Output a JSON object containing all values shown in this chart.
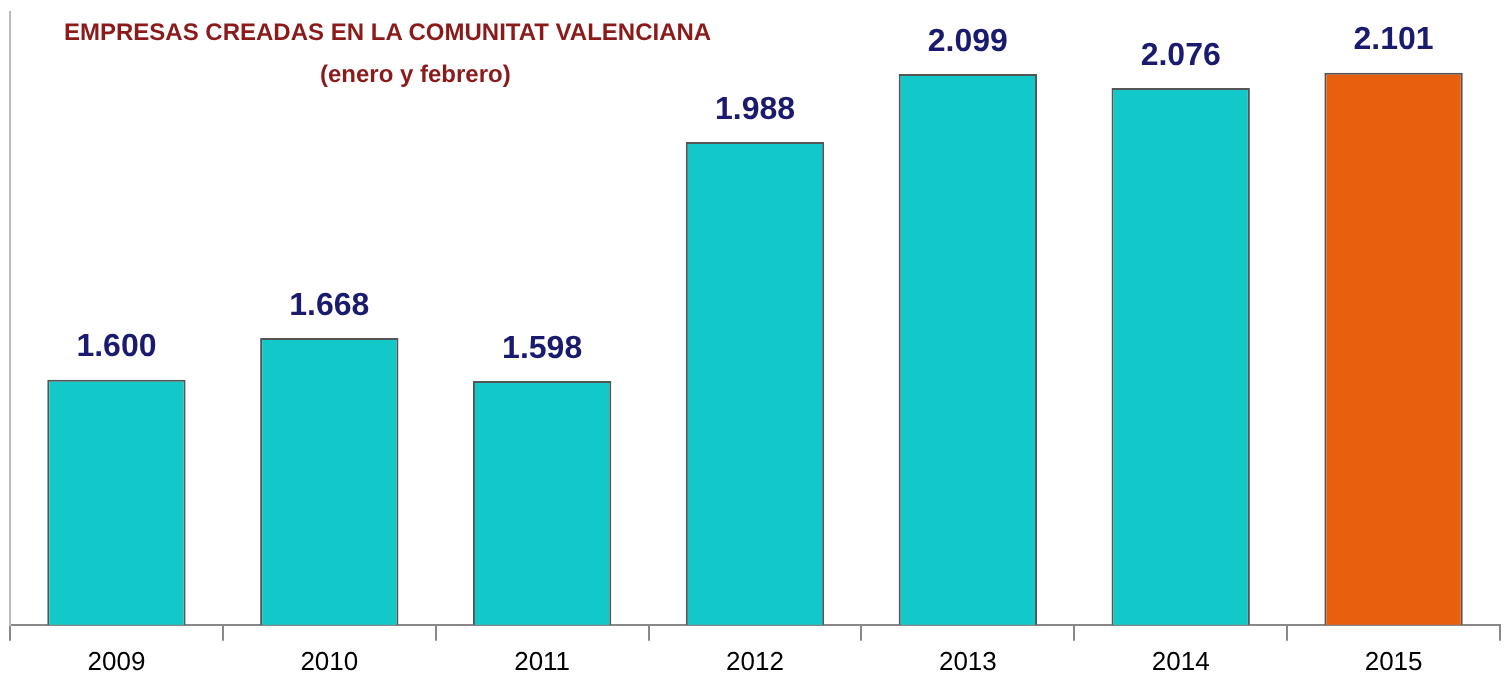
{
  "chart_data": {
    "type": "bar",
    "title": "EMPRESAS CREADAS EN LA COMUNITAT VALENCIANA",
    "subtitle": "(enero y febrero)",
    "categories": [
      "2009",
      "2010",
      "2011",
      "2012",
      "2013",
      "2014",
      "2015"
    ],
    "values": [
      1600,
      1668,
      1598,
      1988,
      2099,
      2076,
      2101
    ],
    "value_labels": [
      "1.600",
      "1.668",
      "1.598",
      "1.988",
      "2.099",
      "2.076",
      "2.101"
    ],
    "colors": [
      "#12c8c8",
      "#12c8c8",
      "#12c8c8",
      "#12c8c8",
      "#12c8c8",
      "#12c8c8",
      "#e8600e"
    ],
    "ylim": [
      1200,
      2200
    ],
    "tick_labels": "x",
    "grid": false,
    "legend": false
  }
}
